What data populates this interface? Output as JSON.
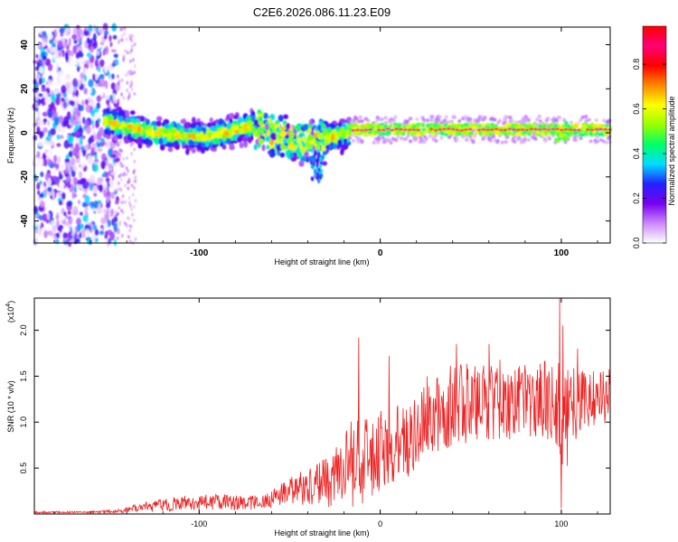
{
  "title": "C2E6.2026.086.11.23.E09",
  "chart_data": [
    {
      "type": "heatmap",
      "id": "spectrogram",
      "xlabel": "Height of straight line (km)",
      "ylabel": "Frequency (Hz)",
      "xlim": [
        -191,
        127
      ],
      "ylim": [
        -50,
        48
      ],
      "xticks": [
        -100,
        0,
        100
      ],
      "xtick_labels": [
        "-100",
        "0",
        "100"
      ],
      "yticks": [
        -40,
        -20,
        0,
        20,
        40
      ],
      "ytick_labels": [
        "-40",
        "-20",
        "0",
        "20",
        "40"
      ],
      "colorbar": {
        "label": "Normalized spectral amplitude",
        "range": [
          0,
          0.97
        ],
        "ticks": [
          0.0,
          0.2,
          0.4,
          0.6,
          0.8
        ],
        "tick_labels": [
          "0.0",
          "0.2",
          "0.4",
          "0.6",
          "0.8"
        ],
        "colors": [
          "#ffffff",
          "#cc88ff",
          "#7700ee",
          "#2222ff",
          "#00ddff",
          "#00ff66",
          "#99ff00",
          "#ffff00",
          "#ff8800",
          "#ff0000",
          "#ff0077",
          "#ff0000"
        ]
      },
      "regions": [
        {
          "name": "noise",
          "x": [
            -191,
            -145
          ],
          "freq": [
            -50,
            48
          ],
          "amplitude": 0.25
        },
        {
          "name": "band-turbulent",
          "x": [
            -152,
            -17
          ],
          "freq_center": [
            5,
            0,
            -2,
            3,
            -5,
            0
          ],
          "width": 6,
          "amplitude": 0.5
        },
        {
          "name": "band-steady",
          "x": [
            -17,
            127
          ],
          "freq_center": [
            1.5,
            1.5
          ],
          "width": 3,
          "amplitude": 0.85
        }
      ]
    },
    {
      "type": "line",
      "id": "snr",
      "xlabel": "Height of straight line (km)",
      "ylabel": "SNR (10 * v/v)",
      "multiplier_label": "(x10",
      "multiplier_exp": "4",
      "xlim": [
        -191,
        127
      ],
      "ylim": [
        0,
        2.35
      ],
      "xticks": [
        -100,
        0,
        100
      ],
      "xtick_labels": [
        "-100",
        "0",
        "100"
      ],
      "yticks": [
        0.5,
        1.0,
        1.5,
        2.0
      ],
      "ytick_labels": [
        "0.5",
        "1.0",
        "1.5",
        "2.0"
      ],
      "series": [
        {
          "name": "SNR",
          "color": "#ee2222",
          "envelope_x": [
            -191,
            -160,
            -145,
            -130,
            -110,
            -90,
            -75,
            -65,
            -55,
            -45,
            -35,
            -28,
            -22,
            -18,
            -12,
            -8,
            -2,
            5,
            15,
            25,
            35,
            45,
            55,
            65,
            75,
            85,
            95,
            102,
            110,
            120,
            127
          ],
          "envelope_mean": [
            0.02,
            0.02,
            0.03,
            0.08,
            0.12,
            0.13,
            0.12,
            0.12,
            0.22,
            0.28,
            0.32,
            0.35,
            0.45,
            0.55,
            0.55,
            0.62,
            0.65,
            0.75,
            0.85,
            1.05,
            1.15,
            1.2,
            1.2,
            1.25,
            1.22,
            1.25,
            1.25,
            1.0,
            1.2,
            1.25,
            1.3
          ],
          "envelope_amp": [
            0.01,
            0.01,
            0.02,
            0.06,
            0.08,
            0.09,
            0.08,
            0.08,
            0.12,
            0.18,
            0.22,
            0.3,
            0.35,
            0.45,
            0.5,
            0.45,
            0.45,
            0.45,
            0.45,
            0.45,
            0.45,
            0.45,
            0.4,
            0.45,
            0.4,
            0.4,
            0.45,
            0.6,
            0.4,
            0.3,
            0.3
          ],
          "peaks": [
            [
              -12,
              1.92
            ],
            [
              5,
              1.72
            ],
            [
              99,
              2.35
            ],
            [
              101,
              2.05
            ],
            [
              100,
              0.06
            ],
            [
              42,
              1.85
            ],
            [
              60,
              1.85
            ],
            [
              109,
              1.8
            ]
          ]
        }
      ]
    }
  ]
}
